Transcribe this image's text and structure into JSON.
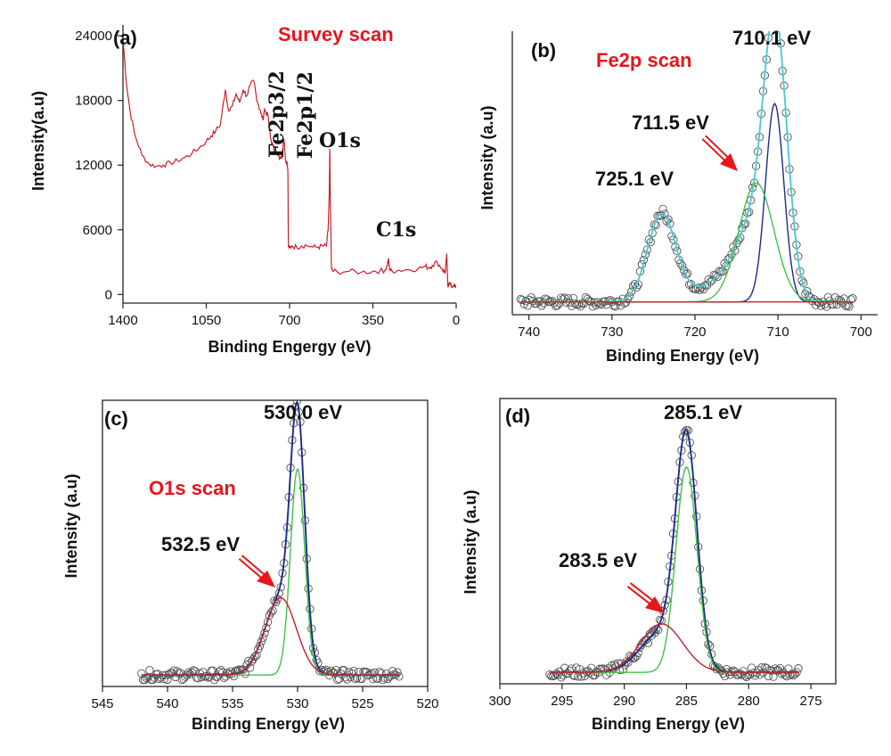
{
  "chart_data": [
    {
      "id": "a",
      "type": "line",
      "panel_letter": "(a)",
      "title": "Survey scan",
      "xlabel": "Binding Engergy (eV)",
      "ylabel": "Intensity(a.u)",
      "xlim": [
        1400,
        0
      ],
      "ylim": [
        -800,
        25000
      ],
      "x_reversed": true,
      "frame": "left-bottom",
      "xticks": [
        1400,
        1050,
        700,
        350,
        0
      ],
      "xtick_labels": [
        "1400",
        "1050",
        "700",
        "350",
        "0"
      ],
      "yticks": [
        0,
        6000,
        12000,
        18000,
        24000
      ],
      "ytick_labels": [
        "0",
        "6000",
        "12000",
        "18000",
        "24000"
      ],
      "series": [
        {
          "color": "#c8202a",
          "x": [
            1400,
            1385,
            1370,
            1350,
            1320,
            1290,
            1260,
            1230,
            1200,
            1170,
            1140,
            1110,
            1080,
            1050,
            1030,
            1010,
            990,
            980,
            970,
            955,
            940,
            925,
            910,
            895,
            880,
            865,
            850,
            840,
            830,
            820,
            812,
            805,
            790,
            780,
            770,
            760,
            750,
            740,
            730,
            726,
            722,
            719,
            716,
            713,
            711,
            709,
            707,
            705,
            700,
            690,
            670,
            650,
            630,
            600,
            580,
            560,
            545,
            538,
            533,
            531,
            529,
            527,
            524,
            520,
            500,
            450,
            400,
            350,
            320,
            300,
            290,
            285,
            282,
            278,
            270,
            240,
            200,
            160,
            130,
            115,
            100,
            80,
            60,
            50,
            45,
            40,
            35,
            30,
            20,
            10,
            0
          ],
          "y": [
            23800,
            19500,
            17000,
            14800,
            12900,
            12100,
            11900,
            12000,
            12200,
            12400,
            12700,
            13100,
            13600,
            14200,
            14700,
            15200,
            15800,
            17500,
            19000,
            17000,
            17500,
            18600,
            17800,
            19000,
            18400,
            19400,
            19800,
            18400,
            17500,
            16800,
            16200,
            17200,
            16500,
            14500,
            13800,
            13200,
            12900,
            12600,
            13000,
            14300,
            14200,
            13100,
            12400,
            12200,
            12300,
            12000,
            11500,
            4400,
            4300,
            4500,
            4400,
            4500,
            4550,
            4400,
            4400,
            4500,
            4500,
            6000,
            9500,
            13500,
            9200,
            6500,
            2400,
            2200,
            2100,
            2150,
            2050,
            2150,
            2200,
            2250,
            2650,
            3300,
            2700,
            2300,
            2200,
            2250,
            2300,
            2400,
            2600,
            2500,
            2700,
            3000,
            2400,
            2100,
            2050,
            3800,
            800,
            1100,
            700,
            900,
            600
          ]
        }
      ],
      "annotations": [
        {
          "text": "Fe2p3/2",
          "x": 720
        },
        {
          "text": "Fe2p1/2",
          "x": 668
        },
        {
          "text": "O1s",
          "x": 531
        },
        {
          "text": "C1s",
          "x": 285
        }
      ]
    },
    {
      "id": "b",
      "type": "scatter",
      "panel_letter": "(b)",
      "title": "Fe2p scan",
      "xlabel": "Binding Energy (eV)",
      "ylabel": "Intensity (a.u)",
      "xlim": [
        742,
        698
      ],
      "ylim": [
        0,
        1
      ],
      "x_reversed": true,
      "frame": "left-bottom",
      "yticks_hidden": true,
      "xticks": [
        740,
        730,
        720,
        710,
        700
      ],
      "xtick_labels": [
        "740",
        "730",
        "720",
        "710",
        "700"
      ],
      "baseline": 0.045,
      "scatter_points": 190,
      "scatter_xrange": [
        741,
        701
      ],
      "series": [
        {
          "role": "envelope",
          "color": "#4fc9d6",
          "peaks": [
            [
              710.3,
              0.895,
              1.4
            ],
            [
              713.0,
              0.26,
              2.3
            ],
            [
              724.0,
              0.31,
              1.7
            ],
            [
              718.0,
              0.05,
              2.5
            ]
          ]
        },
        {
          "role": "component",
          "color": "#1c2a8c",
          "peaks": [
            [
              710.4,
              0.7,
              1.1
            ]
          ]
        },
        {
          "role": "component",
          "color": "#3ec443",
          "peaks": [
            [
              712.6,
              0.42,
              2.1
            ]
          ]
        },
        {
          "role": "background",
          "color": "#c8202a",
          "peaks": []
        }
      ],
      "annotations": [
        {
          "text": "710.1 eV",
          "x": 710.1,
          "y": 0.94
        },
        {
          "text": "711.5 eV",
          "x": 711.5,
          "y": 0.5,
          "arrow": true
        },
        {
          "text": "725.1 eV",
          "x": 725.1,
          "y": 0.4
        }
      ]
    },
    {
      "id": "c",
      "type": "scatter",
      "panel_letter": "(c)",
      "title": "O1s scan",
      "xlabel": "Binding Energy (eV)",
      "ylabel": "Intensity (a.u)",
      "xlim": [
        545,
        520
      ],
      "ylim": [
        0,
        1
      ],
      "x_reversed": true,
      "frame": "box",
      "yticks_hidden": true,
      "xticks": [
        545,
        540,
        535,
        530,
        525,
        520
      ],
      "xtick_labels": [
        "545",
        "540",
        "535",
        "530",
        "525",
        "520"
      ],
      "baseline": 0.04,
      "scatter_points": 160,
      "scatter_xrange": [
        542,
        522.2
      ],
      "series": [
        {
          "role": "envelope",
          "color": "#1c2a8c",
          "peaks": [
            [
              530.0,
              0.8,
              0.55
            ],
            [
              531.3,
              0.27,
              1.2
            ]
          ]
        },
        {
          "role": "component",
          "color": "#3ec443",
          "peaks": [
            [
              530.0,
              0.72,
              0.55
            ]
          ]
        },
        {
          "role": "component",
          "color": "#c8202a",
          "peaks": [
            [
              531.3,
              0.27,
              1.2
            ]
          ]
        }
      ],
      "annotations": [
        {
          "text": "530.0 eV",
          "x": 530.0,
          "y": 0.95
        },
        {
          "text": "532.5 eV",
          "x": 532.5,
          "y": 0.45,
          "arrow": true
        }
      ]
    },
    {
      "id": "d",
      "type": "scatter",
      "panel_letter": "(d)",
      "title": "",
      "xlabel": "Binding Energy (eV)",
      "ylabel": "Intensity (a.u)",
      "xlim": [
        300,
        273
      ],
      "ylim": [
        0,
        1
      ],
      "x_reversed": true,
      "frame": "box",
      "yticks_hidden": true,
      "xticks": [
        300,
        295,
        290,
        285,
        280,
        275
      ],
      "xtick_labels": [
        "300",
        "295",
        "290",
        "285",
        "280",
        "275"
      ],
      "baseline": 0.04,
      "scatter_points": 150,
      "scatter_xrange": [
        296,
        276
      ],
      "series": [
        {
          "role": "envelope",
          "color": "#1c2a8c",
          "peaks": [
            [
              285.0,
              0.78,
              0.85
            ],
            [
              287.0,
              0.14,
              1.7
            ]
          ]
        },
        {
          "role": "component",
          "color": "#3ec443",
          "peaks": [
            [
              285.0,
              0.72,
              0.85
            ]
          ]
        },
        {
          "role": "component",
          "color": "#c8202a",
          "peaks": [
            [
              287.0,
              0.17,
              1.7
            ]
          ]
        }
      ],
      "annotations": [
        {
          "text": "285.1 eV",
          "x": 285.1,
          "y": 0.95
        },
        {
          "text": "283.5 eV",
          "x": 283.5,
          "y": 0.4,
          "arrow": true
        }
      ]
    }
  ]
}
